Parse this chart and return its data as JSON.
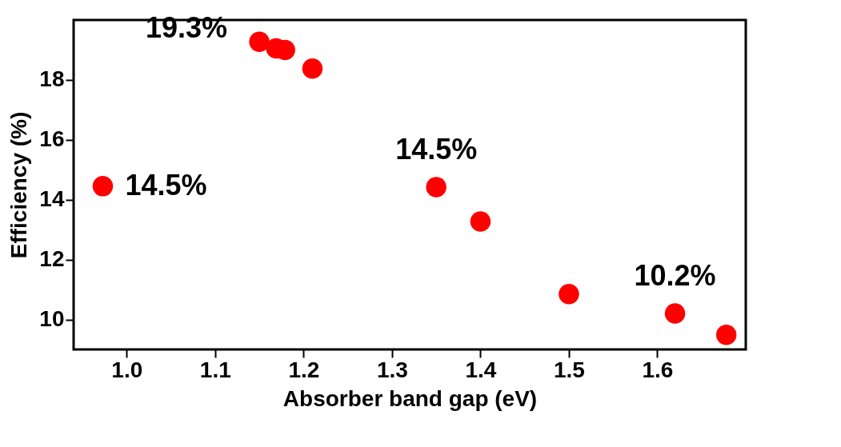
{
  "chart_data": {
    "type": "scatter",
    "xlabel": "Absorber band gap (eV)",
    "ylabel": "Efficiency (%)",
    "x": [
      0.973,
      1.15,
      1.169,
      1.179,
      1.21,
      1.35,
      1.4,
      1.5,
      1.62,
      1.678
    ],
    "series": [
      {
        "color": "#ff0000",
        "values": [
          14.45,
          19.27,
          19.05,
          19.0,
          18.38,
          14.42,
          13.27,
          10.85,
          10.2,
          9.49
        ]
      }
    ],
    "xlim": [
      0.94,
      1.7
    ],
    "ylim": [
      9,
      20
    ],
    "xticks": [
      {
        "value": 1.0,
        "label": "1.0"
      },
      1.1,
      1.2,
      1.3,
      1.4,
      1.5,
      1.6
    ],
    "yticks": [
      10,
      12,
      14,
      16,
      18
    ],
    "grid": false,
    "marker": "circle",
    "annotations": [
      {
        "text": "19.3%",
        "x": 1.15,
        "y": 19.27
      },
      {
        "text": "14.5%",
        "x": 0.973,
        "y": 14.45
      },
      {
        "text": "14.5%",
        "x": 1.35,
        "y": 14.42
      },
      {
        "text": "10.2%",
        "x": 1.62,
        "y": 10.2
      }
    ]
  }
}
